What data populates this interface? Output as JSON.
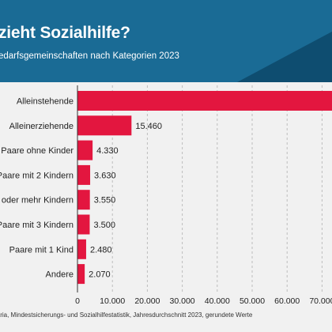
{
  "title": "zieht Sozialhilfe?",
  "subtitle": "edarfsgemeinschaften nach Kategorien 2023",
  "source": "tria, Mindestsicherungs- und Sozialhilfestatistik, Jahresdurchschnitt 2023, gerundete Werte",
  "colors": {
    "header_blue": "#1a6b95",
    "header_dark": "#0e4d70",
    "bar": "#e3163f",
    "background": "#f1f1f1"
  },
  "chart_data": {
    "type": "bar",
    "orientation": "horizontal",
    "categories": [
      "Alleinstehende",
      "Alleinerziehende",
      "Paare ohne Kinder",
      "Paare mit 2 Kindern",
      "oder mehr Kindern",
      "Paare mit 3 Kindern",
      "Paare mit 1 Kind",
      "Andere"
    ],
    "values": [
      82000,
      15460,
      4330,
      3630,
      3550,
      3500,
      2480,
      2070
    ],
    "value_labels": [
      "",
      "15.460",
      "4.330",
      "3.630",
      "3.550",
      "3.500",
      "2.480",
      "2.070"
    ],
    "xlim": [
      0,
      77000
    ],
    "x_ticks": [
      0,
      10000,
      20000,
      30000,
      40000,
      50000,
      60000,
      70000
    ],
    "x_tick_labels": [
      "0",
      "10.000",
      "20.000",
      "30.000",
      "40.000",
      "50.000",
      "60.000",
      "70.000"
    ],
    "grid": "vertical dashed"
  }
}
